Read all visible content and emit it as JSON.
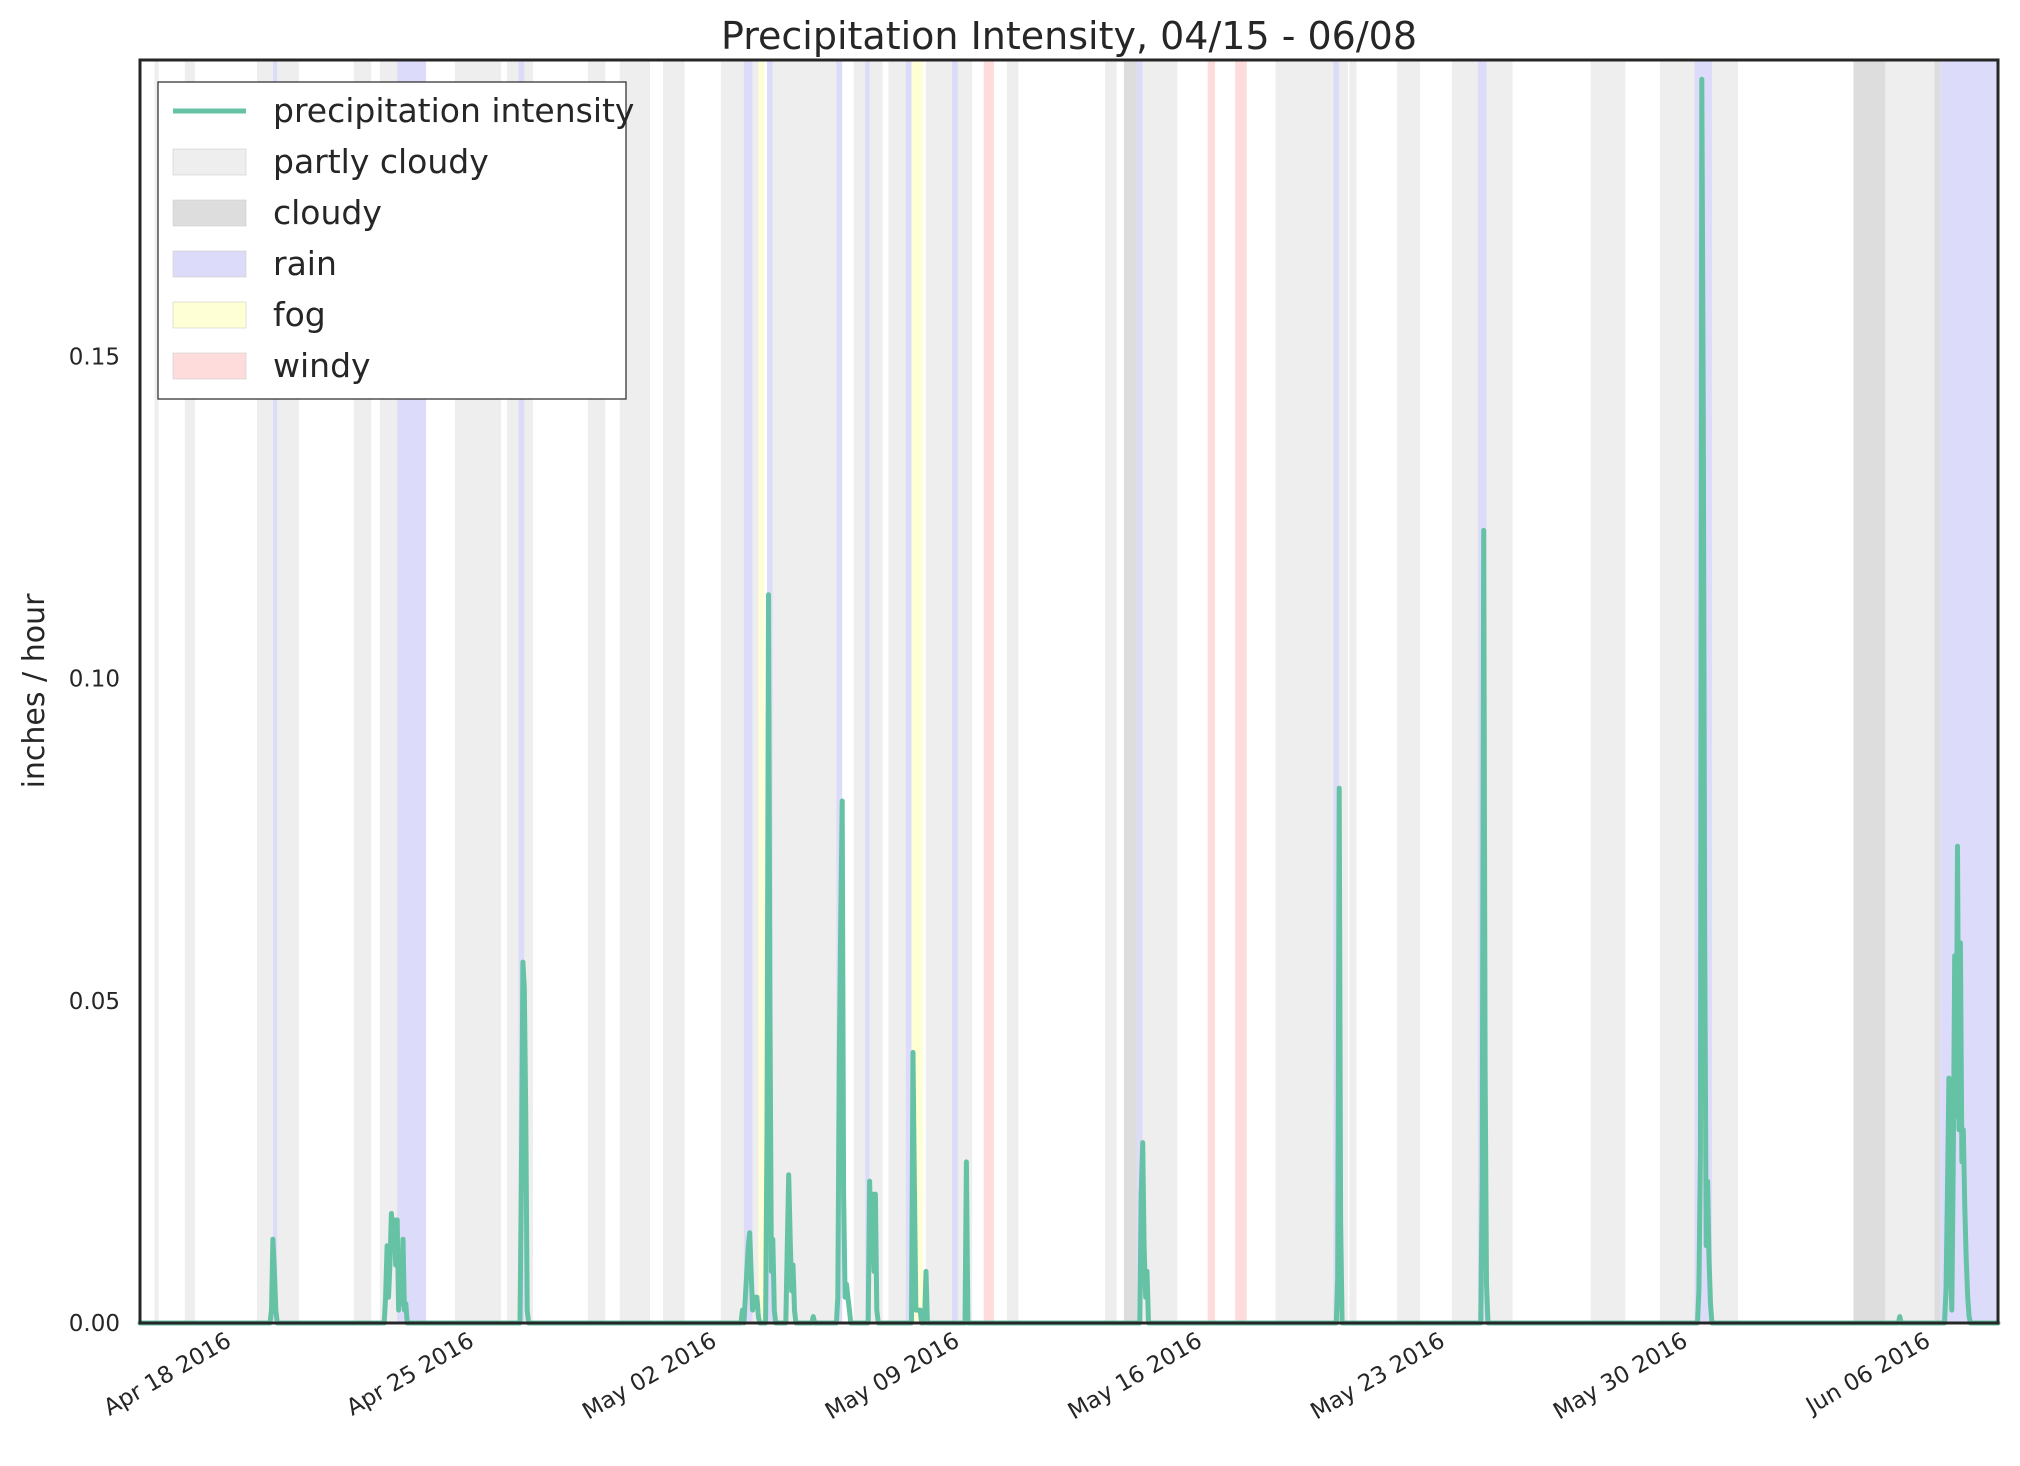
{
  "chart_data": {
    "type": "line",
    "title": "Precipitation Intensity, 04/15 - 06/08",
    "ylabel": "inches / hour",
    "xlabel": "",
    "xlim": [
      "2016-04-15T12:00",
      "2016-06-08T02:00"
    ],
    "ylim": [
      0,
      0.196
    ],
    "yticks": [
      0.0,
      0.05,
      0.1,
      0.15
    ],
    "ytick_labels": [
      "0.00",
      "0.05",
      "0.10",
      "0.15"
    ],
    "xticks": [
      "2016-04-18",
      "2016-04-25",
      "2016-05-02",
      "2016-05-09",
      "2016-05-16",
      "2016-05-23",
      "2016-05-30",
      "2016-06-06"
    ],
    "xtick_labels": [
      "Apr 18 2016",
      "Apr 25 2016",
      "May 02 2016",
      "May 09 2016",
      "May 16 2016",
      "May 23 2016",
      "May 30 2016",
      "Jun 06 2016"
    ],
    "grid": false,
    "legend_position": "top-left",
    "legend": [
      {
        "label": "precipitation intensity",
        "kind": "line",
        "color": "#66c2a5"
      },
      {
        "label": "partly cloudy",
        "kind": "patch",
        "color": "#eeeeee"
      },
      {
        "label": "cloudy",
        "kind": "patch",
        "color": "#dddddd"
      },
      {
        "label": "rain",
        "kind": "patch",
        "color": "#dcdcfa"
      },
      {
        "label": "fog",
        "kind": "patch",
        "color": "#ffffd6"
      },
      {
        "label": "windy",
        "kind": "patch",
        "color": "#ffdcdc"
      }
    ],
    "condition_colors": {
      "partly cloudy": "#eeeeee",
      "cloudy": "#dddddd",
      "rain": "#dcdcfa",
      "fog": "#ffffd6",
      "windy": "#ffdcdc"
    },
    "condition_spans": [
      {
        "condition": "partly cloudy",
        "start": "2016-04-15T22:00",
        "end": "2016-04-16T01:00"
      },
      {
        "condition": "partly cloudy",
        "start": "2016-04-16T19:00",
        "end": "2016-04-17T02:00"
      },
      {
        "condition": "partly cloudy",
        "start": "2016-04-18T21:00",
        "end": "2016-04-19T08:00"
      },
      {
        "condition": "partly cloudy",
        "start": "2016-04-19T08:00",
        "end": "2016-04-19T20:00"
      },
      {
        "condition": "rain",
        "start": "2016-04-19T08:00",
        "end": "2016-04-19T11:00"
      },
      {
        "condition": "partly cloudy",
        "start": "2016-04-19T20:00",
        "end": "2016-04-20T02:00"
      },
      {
        "condition": "partly cloudy",
        "start": "2016-04-21T16:00",
        "end": "2016-04-22T04:00"
      },
      {
        "condition": "partly cloudy",
        "start": "2016-04-22T10:00",
        "end": "2016-04-23T08:00"
      },
      {
        "condition": "rain",
        "start": "2016-04-22T22:00",
        "end": "2016-04-23T18:00"
      },
      {
        "condition": "partly cloudy",
        "start": "2016-04-24T14:00",
        "end": "2016-04-25T22:00"
      },
      {
        "condition": "partly cloudy",
        "start": "2016-04-26T02:00",
        "end": "2016-04-26T20:00"
      },
      {
        "condition": "rain",
        "start": "2016-04-26T10:00",
        "end": "2016-04-26T14:00"
      },
      {
        "condition": "partly cloudy",
        "start": "2016-04-28T10:00",
        "end": "2016-04-28T22:00"
      },
      {
        "condition": "partly cloudy",
        "start": "2016-04-29T08:00",
        "end": "2016-04-30T05:00"
      },
      {
        "condition": "partly cloudy",
        "start": "2016-04-30T14:00",
        "end": "2016-05-01T05:00"
      },
      {
        "condition": "partly cloudy",
        "start": "2016-05-02T06:00",
        "end": "2016-05-03T12:00"
      },
      {
        "condition": "rain",
        "start": "2016-05-02T22:00",
        "end": "2016-05-03T04:00"
      },
      {
        "condition": "fog",
        "start": "2016-05-03T08:00",
        "end": "2016-05-03T12:00"
      },
      {
        "condition": "rain",
        "start": "2016-05-03T14:00",
        "end": "2016-05-03T18:00"
      },
      {
        "condition": "partly cloudy",
        "start": "2016-05-03T18:00",
        "end": "2016-05-05T18:00"
      },
      {
        "condition": "rain",
        "start": "2016-05-05T14:00",
        "end": "2016-05-05T18:00"
      },
      {
        "condition": "partly cloudy",
        "start": "2016-05-06T02:00",
        "end": "2016-05-06T22:00"
      },
      {
        "condition": "rain",
        "start": "2016-05-06T10:00",
        "end": "2016-05-06T13:00"
      },
      {
        "condition": "partly cloudy",
        "start": "2016-05-07T02:00",
        "end": "2016-05-07T18:00"
      },
      {
        "condition": "rain",
        "start": "2016-05-07T14:00",
        "end": "2016-05-07T18:00"
      },
      {
        "condition": "fog",
        "start": "2016-05-07T18:00",
        "end": "2016-05-08T02:00"
      },
      {
        "condition": "partly cloudy",
        "start": "2016-05-08T04:00",
        "end": "2016-05-09T12:00"
      },
      {
        "condition": "rain",
        "start": "2016-05-08T22:00",
        "end": "2016-05-09T02:00"
      },
      {
        "condition": "windy",
        "start": "2016-05-09T20:00",
        "end": "2016-05-10T03:00"
      },
      {
        "condition": "partly cloudy",
        "start": "2016-05-10T12:00",
        "end": "2016-05-10T20:00"
      },
      {
        "condition": "partly cloudy",
        "start": "2016-05-13T08:00",
        "end": "2016-05-13T16:00"
      },
      {
        "condition": "cloudy",
        "start": "2016-05-13T21:00",
        "end": "2016-05-14T06:00"
      },
      {
        "condition": "rain",
        "start": "2016-05-14T06:00",
        "end": "2016-05-14T10:00"
      },
      {
        "condition": "partly cloudy",
        "start": "2016-05-14T10:00",
        "end": "2016-05-15T10:00"
      },
      {
        "condition": "windy",
        "start": "2016-05-16T07:00",
        "end": "2016-05-16T12:00"
      },
      {
        "condition": "windy",
        "start": "2016-05-17T02:00",
        "end": "2016-05-17T10:00"
      },
      {
        "condition": "partly cloudy",
        "start": "2016-05-18T06:00",
        "end": "2016-05-20T08:00"
      },
      {
        "condition": "rain",
        "start": "2016-05-19T22:00",
        "end": "2016-05-20T02:00"
      },
      {
        "condition": "partly cloudy",
        "start": "2016-05-20T09:00",
        "end": "2016-05-20T14:00"
      },
      {
        "condition": "partly cloudy",
        "start": "2016-05-21T18:00",
        "end": "2016-05-22T10:00"
      },
      {
        "condition": "partly cloudy",
        "start": "2016-05-23T08:00",
        "end": "2016-05-25T02:00"
      },
      {
        "condition": "rain",
        "start": "2016-05-24T02:00",
        "end": "2016-05-24T08:00"
      },
      {
        "condition": "partly cloudy",
        "start": "2016-05-27T08:00",
        "end": "2016-05-28T08:00"
      },
      {
        "condition": "partly cloudy",
        "start": "2016-05-29T08:00",
        "end": "2016-05-31T14:00"
      },
      {
        "condition": "rain",
        "start": "2016-05-30T08:00",
        "end": "2016-05-30T20:00"
      },
      {
        "condition": "cloudy",
        "start": "2016-06-03T22:00",
        "end": "2016-06-04T20:00"
      },
      {
        "condition": "partly cloudy",
        "start": "2016-06-04T20:00",
        "end": "2016-06-06T06:00"
      },
      {
        "condition": "cloudy",
        "start": "2016-06-06T06:00",
        "end": "2016-06-06T10:00"
      },
      {
        "condition": "rain",
        "start": "2016-06-06T10:00",
        "end": "2016-06-08T02:00"
      }
    ],
    "series": [
      {
        "name": "precipitation intensity",
        "color": "#66c2a5",
        "points": [
          [
            "2016-04-15T12:00",
            0
          ],
          [
            "2016-04-19T06:00",
            0
          ],
          [
            "2016-04-19T07:00",
            0.002
          ],
          [
            "2016-04-19T08:00",
            0.013
          ],
          [
            "2016-04-19T09:00",
            0.008
          ],
          [
            "2016-04-19T10:00",
            0.002
          ],
          [
            "2016-04-19T11:00",
            0
          ],
          [
            "2016-04-22T13:00",
            0
          ],
          [
            "2016-04-22T14:00",
            0.004
          ],
          [
            "2016-04-22T15:00",
            0.012
          ],
          [
            "2016-04-22T16:00",
            0.004
          ],
          [
            "2016-04-22T17:00",
            0.009
          ],
          [
            "2016-04-22T18:00",
            0.017
          ],
          [
            "2016-04-22T19:00",
            0.012
          ],
          [
            "2016-04-22T20:00",
            0.016
          ],
          [
            "2016-04-22T21:00",
            0.009
          ],
          [
            "2016-04-22T22:00",
            0.016
          ],
          [
            "2016-04-22T23:00",
            0.002
          ],
          [
            "2016-04-23T00:00",
            0.008
          ],
          [
            "2016-04-23T01:00",
            0.003
          ],
          [
            "2016-04-23T02:00",
            0.013
          ],
          [
            "2016-04-23T03:00",
            0.002
          ],
          [
            "2016-04-23T04:00",
            0.003
          ],
          [
            "2016-04-23T05:00",
            0
          ],
          [
            "2016-04-26T11:00",
            0
          ],
          [
            "2016-04-26T12:00",
            0.023
          ],
          [
            "2016-04-26T13:00",
            0.056
          ],
          [
            "2016-04-26T14:00",
            0.052
          ],
          [
            "2016-04-26T15:00",
            0.032
          ],
          [
            "2016-04-26T16:00",
            0.002
          ],
          [
            "2016-04-26T17:00",
            0
          ],
          [
            "2016-05-02T20:00",
            0
          ],
          [
            "2016-05-02T21:00",
            0.002
          ],
          [
            "2016-05-02T22:00",
            0
          ],
          [
            "2016-05-03T01:00",
            0.012
          ],
          [
            "2016-05-03T02:00",
            0.014
          ],
          [
            "2016-05-03T03:00",
            0.008
          ],
          [
            "2016-05-03T04:00",
            0.002
          ],
          [
            "2016-05-03T05:00",
            0.004
          ],
          [
            "2016-05-03T06:00",
            0.004
          ],
          [
            "2016-05-03T07:00",
            0.004
          ],
          [
            "2016-05-03T08:00",
            0.001
          ],
          [
            "2016-05-03T09:00",
            0
          ],
          [
            "2016-05-03T13:00",
            0
          ],
          [
            "2016-05-03T14:00",
            0.03
          ],
          [
            "2016-05-03T15:00",
            0.113
          ],
          [
            "2016-05-03T16:00",
            0.05
          ],
          [
            "2016-05-03T17:00",
            0.008
          ],
          [
            "2016-05-03T18:00",
            0.013
          ],
          [
            "2016-05-03T19:00",
            0.002
          ],
          [
            "2016-05-03T20:00",
            0
          ],
          [
            "2016-05-04T03:00",
            0
          ],
          [
            "2016-05-04T04:00",
            0.012
          ],
          [
            "2016-05-04T05:00",
            0.023
          ],
          [
            "2016-05-04T06:00",
            0.013
          ],
          [
            "2016-05-04T07:00",
            0.005
          ],
          [
            "2016-05-04T08:00",
            0.009
          ],
          [
            "2016-05-04T09:00",
            0.002
          ],
          [
            "2016-05-04T10:00",
            0
          ],
          [
            "2016-05-04T21:00",
            0
          ],
          [
            "2016-05-04T22:00",
            0.001
          ],
          [
            "2016-05-04T23:00",
            0
          ],
          [
            "2016-05-05T14:00",
            0
          ],
          [
            "2016-05-05T15:00",
            0.004
          ],
          [
            "2016-05-05T16:00",
            0.041
          ],
          [
            "2016-05-05T17:00",
            0.062
          ],
          [
            "2016-05-05T18:00",
            0.081
          ],
          [
            "2016-05-05T19:00",
            0.02
          ],
          [
            "2016-05-05T20:00",
            0.004
          ],
          [
            "2016-05-05T21:00",
            0.006
          ],
          [
            "2016-05-05T22:00",
            0.004
          ],
          [
            "2016-05-05T23:00",
            0.002
          ],
          [
            "2016-05-06T00:00",
            0
          ],
          [
            "2016-05-06T12:00",
            0
          ],
          [
            "2016-05-06T13:00",
            0.022
          ],
          [
            "2016-05-06T14:00",
            0.013
          ],
          [
            "2016-05-06T15:00",
            0.02
          ],
          [
            "2016-05-06T16:00",
            0.008
          ],
          [
            "2016-05-06T17:00",
            0.02
          ],
          [
            "2016-05-06T18:00",
            0.002
          ],
          [
            "2016-05-06T19:00",
            0
          ],
          [
            "2016-05-07T18:00",
            0
          ],
          [
            "2016-05-07T19:00",
            0.042
          ],
          [
            "2016-05-07T20:00",
            0.021
          ],
          [
            "2016-05-07T21:00",
            0.002
          ],
          [
            "2016-05-07T22:00",
            0.002
          ],
          [
            "2016-05-07T23:00",
            0.002
          ],
          [
            "2016-05-08T00:00",
            0.002
          ],
          [
            "2016-05-08T01:00",
            0
          ],
          [
            "2016-05-08T03:00",
            0
          ],
          [
            "2016-05-08T04:00",
            0.008
          ],
          [
            "2016-05-08T05:00",
            0
          ],
          [
            "2016-05-09T07:00",
            0
          ],
          [
            "2016-05-09T08:00",
            0.025
          ],
          [
            "2016-05-09T09:00",
            0
          ],
          [
            "2016-05-14T08:00",
            0
          ],
          [
            "2016-05-14T09:00",
            0.02
          ],
          [
            "2016-05-14T10:00",
            0.028
          ],
          [
            "2016-05-14T11:00",
            0.012
          ],
          [
            "2016-05-14T12:00",
            0.004
          ],
          [
            "2016-05-14T13:00",
            0.008
          ],
          [
            "2016-05-14T14:00",
            0
          ],
          [
            "2016-05-20T00:00",
            0
          ],
          [
            "2016-05-20T01:00",
            0.007
          ],
          [
            "2016-05-20T02:00",
            0.083
          ],
          [
            "2016-05-20T03:00",
            0.016
          ],
          [
            "2016-05-20T04:00",
            0
          ],
          [
            "2016-05-24T04:00",
            0
          ],
          [
            "2016-05-24T05:00",
            0.022
          ],
          [
            "2016-05-24T06:00",
            0.123
          ],
          [
            "2016-05-24T07:00",
            0.04
          ],
          [
            "2016-05-24T08:00",
            0.006
          ],
          [
            "2016-05-24T09:00",
            0
          ],
          [
            "2016-05-30T10:00",
            0
          ],
          [
            "2016-05-30T11:00",
            0.005
          ],
          [
            "2016-05-30T12:00",
            0.026
          ],
          [
            "2016-05-30T13:00",
            0.193
          ],
          [
            "2016-05-30T14:00",
            0.14
          ],
          [
            "2016-05-30T15:00",
            0.06
          ],
          [
            "2016-05-30T16:00",
            0.012
          ],
          [
            "2016-05-30T17:00",
            0.022
          ],
          [
            "2016-05-30T18:00",
            0.01
          ],
          [
            "2016-05-30T19:00",
            0.003
          ],
          [
            "2016-05-30T20:00",
            0
          ],
          [
            "2016-06-05T05:00",
            0
          ],
          [
            "2016-06-05T06:00",
            0.001
          ],
          [
            "2016-06-05T07:00",
            0
          ],
          [
            "2016-06-06T13:00",
            0
          ],
          [
            "2016-06-06T14:00",
            0.005
          ],
          [
            "2016-06-06T15:00",
            0.02
          ],
          [
            "2016-06-06T16:00",
            0.038
          ],
          [
            "2016-06-06T17:00",
            0.01
          ],
          [
            "2016-06-06T18:00",
            0.002
          ],
          [
            "2016-06-06T19:00",
            0.024
          ],
          [
            "2016-06-06T20:00",
            0.057
          ],
          [
            "2016-06-06T21:00",
            0.032
          ],
          [
            "2016-06-06T22:00",
            0.074
          ],
          [
            "2016-06-06T23:00",
            0.03
          ],
          [
            "2016-06-07T00:00",
            0.059
          ],
          [
            "2016-06-07T01:00",
            0.025
          ],
          [
            "2016-06-07T02:00",
            0.03
          ],
          [
            "2016-06-07T03:00",
            0.018
          ],
          [
            "2016-06-07T04:00",
            0.01
          ],
          [
            "2016-06-07T05:00",
            0.004
          ],
          [
            "2016-06-07T06:00",
            0.001
          ],
          [
            "2016-06-07T07:00",
            0
          ],
          [
            "2016-06-08T02:00",
            0
          ]
        ]
      }
    ]
  }
}
